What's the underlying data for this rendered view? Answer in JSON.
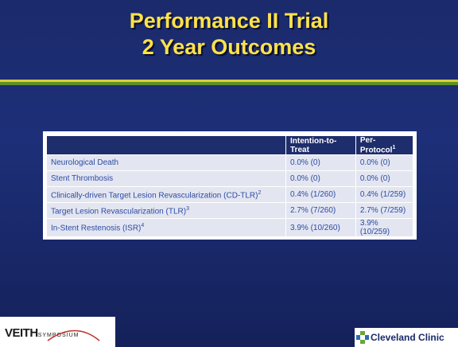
{
  "title": [
    "Performance II Trial",
    "2 Year Outcomes"
  ],
  "table": {
    "header": [
      {
        "label": "Intention-to-Treat"
      },
      {
        "label": "Per-Protocol",
        "note": "1"
      }
    ],
    "rows": [
      {
        "label": "Neurological Death",
        "itt": "0.0% (0)",
        "pp": "0.0% (0)"
      },
      {
        "label": "Stent Thrombosis",
        "itt": "0.0% (0)",
        "pp": "0.0% (0)"
      },
      {
        "label": "Clinically-driven Target Lesion Revascularization (CD-TLR)",
        "note": "2",
        "itt": "0.4% (1/260)",
        "pp": "0.4% (1/259)"
      },
      {
        "label": "Target Lesion Revascularization (TLR)",
        "note": "3",
        "itt": "2.7% (7/260)",
        "pp": "2.7% (7/259)"
      },
      {
        "label": "In-Stent Restenosis (ISR)",
        "note": "4",
        "itt": "3.9% (10/260)",
        "pp": "3.9% (10/259)"
      }
    ]
  },
  "logos": {
    "left": {
      "main": "VEITH",
      "sub": "SYMPOSIUM"
    },
    "right": "Cleveland Clinic"
  }
}
